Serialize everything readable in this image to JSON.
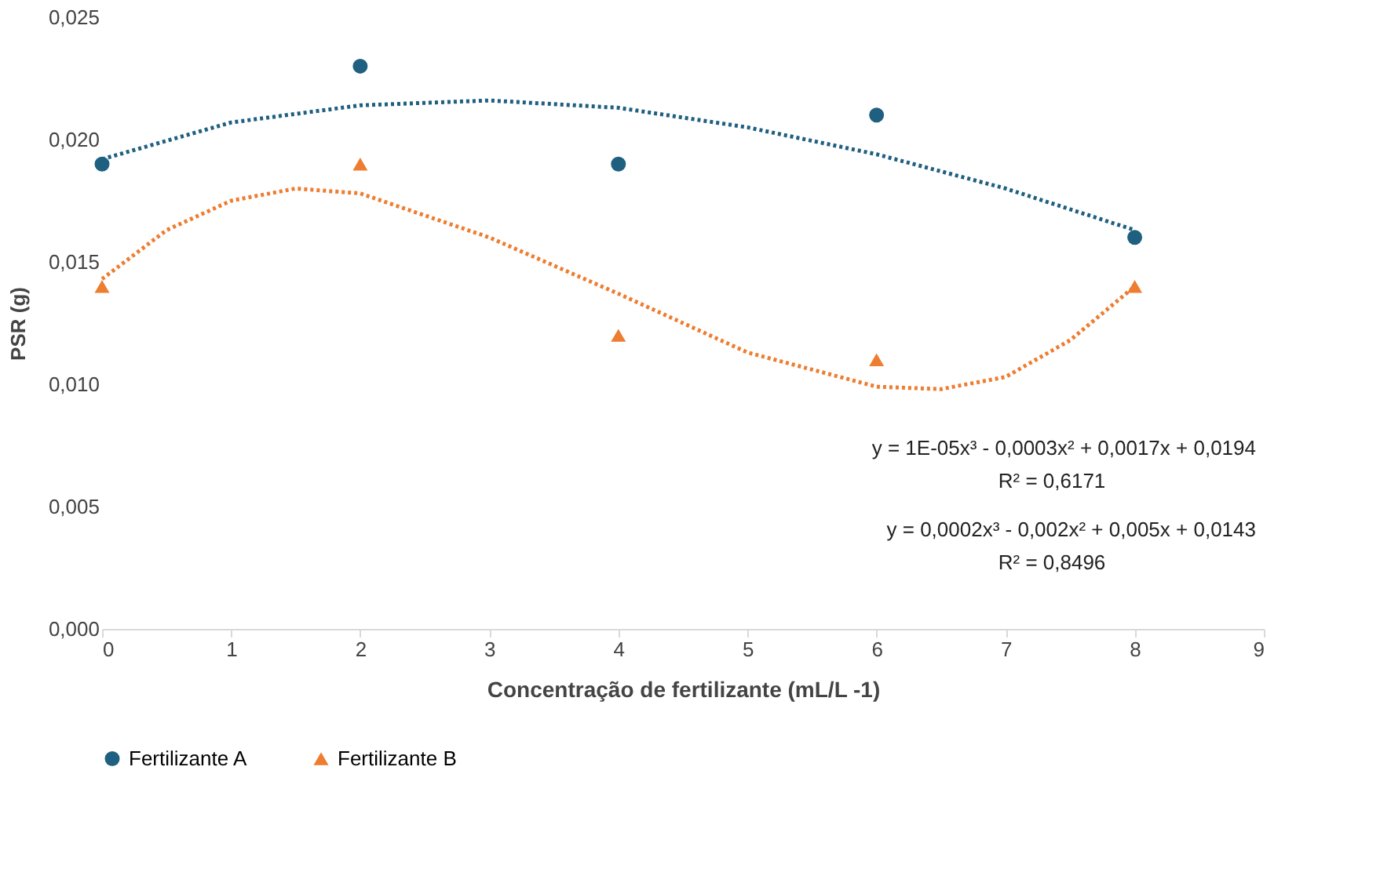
{
  "chart_data": {
    "type": "scatter",
    "xlabel": "Concentração de fertilizante (mL/L  -1)",
    "ylabel": "PSR (g)",
    "x": [
      0,
      2,
      4,
      6,
      8
    ],
    "series": [
      {
        "name": "Fertilizante A",
        "color": "#1f5f80",
        "marker": "circle",
        "values": [
          0.019,
          0.023,
          0.019,
          0.021,
          0.016
        ]
      },
      {
        "name": "Fertilizante B",
        "color": "#ed7d31",
        "marker": "triangle",
        "values": [
          0.014,
          0.019,
          0.012,
          0.011,
          0.014
        ]
      },
      {
        "type": "line",
        "color": "#1f5f80",
        "line_style": "dotted",
        "x": [
          0,
          1,
          2,
          3,
          4,
          5,
          6,
          7,
          8
        ],
        "values": [
          0.0192,
          0.0207,
          0.0214,
          0.0216,
          0.0213,
          0.0205,
          0.0194,
          0.018,
          0.0163
        ]
      },
      {
        "type": "line",
        "color": "#ed7d31",
        "line_style": "dotted",
        "x": [
          0,
          0.5,
          1,
          1.5,
          2,
          3,
          4,
          5,
          6,
          6.5,
          7,
          7.5,
          8
        ],
        "values": [
          0.0143,
          0.0163,
          0.0175,
          0.018,
          0.0178,
          0.016,
          0.0137,
          0.0113,
          0.0099,
          0.0098,
          0.0103,
          0.0118,
          0.014
        ]
      }
    ],
    "xlim": [
      0,
      9
    ],
    "xticks": [
      0,
      1,
      2,
      3,
      4,
      5,
      6,
      7,
      8,
      9
    ],
    "ylim": [
      0,
      0.025
    ],
    "yticks": [
      {
        "value": 0,
        "label": "0,000"
      },
      {
        "value": 0.005,
        "label": "0,005"
      },
      {
        "value": 0.01,
        "label": "0,010"
      },
      {
        "value": 0.015,
        "label": "0,015"
      },
      {
        "value": 0.02,
        "label": "0,020"
      },
      {
        "value": 0.025,
        "label": "0,025"
      }
    ],
    "grid": false,
    "legend": "bottom",
    "annotations": [
      "y = 1E-05x³ - 0,0003x² + 0,0017x + 0,0194",
      "R² = 0,6171",
      "y = 0,0002x³ - 0,002x² + 0,005x + 0,0143",
      "R² = 0,8496"
    ]
  }
}
